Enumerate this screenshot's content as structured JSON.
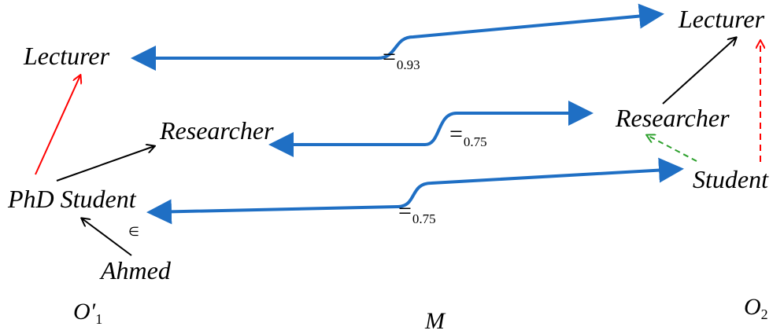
{
  "left": {
    "lecturer": "Lecturer",
    "researcher": "Researcher",
    "phd_student": "PhD Student",
    "ahmed": "Ahmed",
    "membership": "∈",
    "name_main": "O′",
    "name_sub": "1"
  },
  "right": {
    "lecturer": "Lecturer",
    "researcher": "Researcher",
    "student": "Student",
    "name_main": "O",
    "name_sub": "2"
  },
  "mapping": {
    "name": "M",
    "links": [
      {
        "symbol": "=",
        "value": "0.93"
      },
      {
        "symbol": "=",
        "value": "0.75"
      },
      {
        "symbol": "=",
        "value": "0.75"
      }
    ]
  },
  "colors": {
    "mapping_arrow": "#1f6fc4",
    "subclass_arrow": "#000000",
    "left_highlight": "#ff0000",
    "right_inferred_red": "#ff0000",
    "right_inferred_green": "#2ca02c"
  }
}
